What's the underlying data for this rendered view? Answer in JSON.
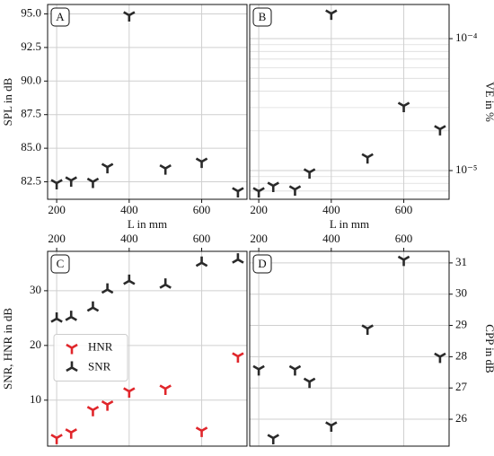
{
  "chart_data": [
    {
      "type": "scatter",
      "label": "A",
      "ylabel": "SPL in dB",
      "xlabel": "L in mm",
      "xaxis_position": "bottom",
      "yaxis_position": "left",
      "grid": true,
      "xlim": [
        175,
        725
      ],
      "xticks": [
        200,
        400,
        600
      ],
      "ylim": [
        81.2,
        95.7
      ],
      "yticks": [
        82.5,
        {
          "value": 85,
          "label": "85.0"
        },
        87.5,
        {
          "value": 90,
          "label": "90.0"
        },
        92.5,
        {
          "value": 95,
          "label": "95.0"
        }
      ],
      "x": [
        200,
        240,
        300,
        340,
        400,
        500,
        600,
        700
      ],
      "series": [
        {
          "color": "#2a2a2a",
          "marker": "tri_down",
          "values": [
            82.4,
            82.6,
            82.5,
            83.6,
            94.9,
            83.5,
            84.0,
            81.8
          ]
        }
      ]
    },
    {
      "type": "scatter",
      "label": "B",
      "ylabel": "VE in %",
      "xlabel": "L in mm",
      "xaxis_position": "bottom",
      "yaxis_position": "right",
      "grid": true,
      "log_y": true,
      "minor_grid": true,
      "xlim": [
        175,
        725
      ],
      "xticks": [
        200,
        400,
        600
      ],
      "ylim": [
        6.06e-06,
        0.0001815
      ],
      "yticks": [
        {
          "value": 1e-05,
          "label": "10⁻⁵"
        },
        {
          "value": 0.0001,
          "label": "10⁻⁴"
        }
      ],
      "x": [
        200,
        240,
        300,
        340,
        400,
        500,
        600,
        700
      ],
      "series": [
        {
          "color": "#2a2a2a",
          "marker": "tri_down",
          "values": [
            6.98e-06,
            7.66e-06,
            7.2e-06,
            9.7e-06,
            0.000155,
            1.26e-05,
            3.09e-05,
            2.06e-05
          ]
        }
      ]
    },
    {
      "type": "scatter",
      "label": "C",
      "ylabel": "SNR, HNR in dB",
      "xaxis_position": "top",
      "yaxis_position": "left",
      "grid": true,
      "legend": "center left",
      "xlim": [
        175,
        725
      ],
      "xticks": [
        200,
        400,
        600
      ],
      "ylim": [
        1.6,
        37.2
      ],
      "yticks": [
        10,
        20,
        30
      ],
      "x": [
        200,
        240,
        300,
        340,
        400,
        500,
        600,
        700
      ],
      "series": [
        {
          "name": "HNR",
          "color": "#e0262b",
          "marker": "tri_down",
          "values": [
            3.1,
            4.1,
            8.2,
            9.2,
            11.6,
            12.1,
            4.4,
            18.0
          ]
        },
        {
          "name": "SNR",
          "color": "#2a2a2a",
          "marker": "tri_up",
          "values": [
            24.9,
            25.2,
            26.9,
            30.2,
            31.8,
            31.1,
            35.1,
            35.7
          ]
        }
      ]
    },
    {
      "type": "scatter",
      "label": "D",
      "ylabel": "CPP in dB",
      "xaxis_position": "top",
      "yaxis_position": "right",
      "grid": true,
      "xlim": [
        175,
        725
      ],
      "xticks": [
        200,
        400,
        600
      ],
      "ylim": [
        25.14,
        31.37
      ],
      "yticks": [
        26,
        27,
        28,
        29,
        30,
        31
      ],
      "x": [
        200,
        240,
        300,
        340,
        400,
        500,
        600,
        700
      ],
      "series": [
        {
          "color": "#2a2a2a",
          "marker": "tri_down",
          "values": [
            27.6,
            25.4,
            27.6,
            27.2,
            25.8,
            28.9,
            31.1,
            28.0
          ]
        }
      ]
    }
  ]
}
